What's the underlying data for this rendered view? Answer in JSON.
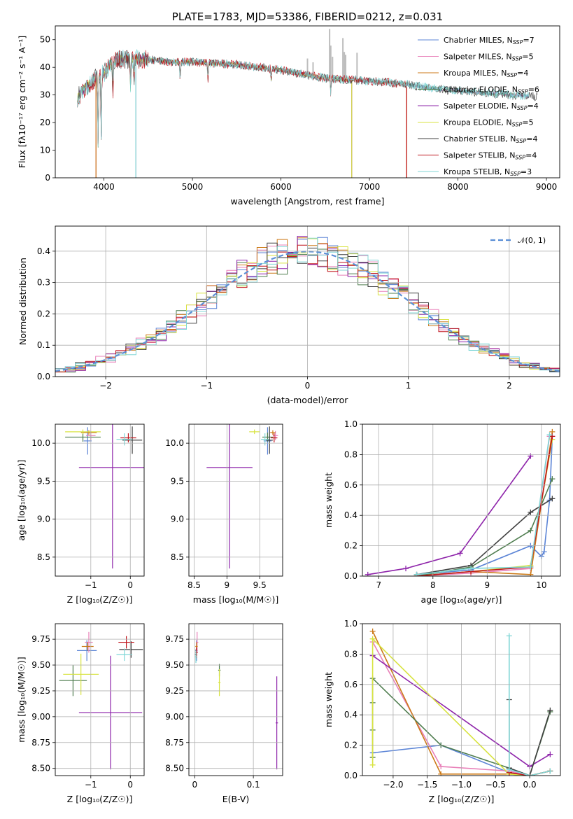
{
  "colors": {
    "Chabrier MILES": "#5b84d6",
    "Salpeter MILES": "#e87fb8",
    "Kroupa MILES": "#cc7a18",
    "Chabrier ELODIE": "#4f7d4f",
    "Salpeter ELODIE": "#8e24aa",
    "Kroupa ELODIE": "#d8e340",
    "Chabrier STELIB": "#404040",
    "Salpeter STELIB": "#c0141c",
    "Kroupa STELIB": "#7fd6d6",
    "gauss": "#5b8fd6",
    "sky": "#bdbdbd"
  },
  "chart_data": [
    {
      "id": "spectrum",
      "type": "line",
      "title": "PLATE=1783, MJD=53386, FIBERID=0212, z=0.031",
      "xlabel": "wavelength [Angstrom, rest frame]",
      "ylabel": "Flux [fλ10⁻¹⁷ erg cm⁻² s⁻¹ A⁻¹]",
      "xlim": [
        3450,
        9150
      ],
      "ylim": [
        0,
        55
      ],
      "xticks": [
        4000,
        5000,
        6000,
        7000,
        8000,
        9000
      ],
      "yticks": [
        0,
        10,
        20,
        30,
        40,
        50
      ],
      "legend": "top-right",
      "series": [
        {
          "name": "Chabrier MILES, N",
          "sub": "SSP",
          "eq": "=7"
        },
        {
          "name": "Salpeter MILES, N",
          "sub": "SSP",
          "eq": "=5"
        },
        {
          "name": "Kroupa MILES, N",
          "sub": "SSP",
          "eq": "=4"
        },
        {
          "name": "Chabrier ELODIE, N",
          "sub": "SSP",
          "eq": "=6"
        },
        {
          "name": "Salpeter ELODIE, N",
          "sub": "SSP",
          "eq": "=4"
        },
        {
          "name": "Kroupa ELODIE, N",
          "sub": "SSP",
          "eq": "=5"
        },
        {
          "name": "Chabrier STELIB, N",
          "sub": "SSP",
          "eq": "=4"
        },
        {
          "name": "Salpeter STELIB, N",
          "sub": "SSP",
          "eq": "=4"
        },
        {
          "name": "Kroupa STELIB, N",
          "sub": "SSP",
          "eq": "=3"
        }
      ],
      "continuum": [
        [
          3700,
          29
        ],
        [
          3800,
          33
        ],
        [
          3900,
          36
        ],
        [
          4000,
          38
        ],
        [
          4100,
          42
        ],
        [
          4200,
          43
        ],
        [
          4400,
          43
        ],
        [
          4600,
          42.5
        ],
        [
          4800,
          42
        ],
        [
          5000,
          42
        ],
        [
          5200,
          41.5
        ],
        [
          5500,
          41
        ],
        [
          6000,
          39
        ],
        [
          6500,
          36
        ],
        [
          7000,
          35
        ],
        [
          7400,
          34
        ],
        [
          7800,
          32
        ],
        [
          8200,
          31
        ],
        [
          8600,
          30
        ],
        [
          8800,
          29.5
        ]
      ],
      "absorption": [
        [
          3934,
          24
        ],
        [
          3969,
          22
        ],
        [
          4101,
          10
        ],
        [
          4300,
          10
        ],
        [
          4340,
          8
        ],
        [
          4861,
          6
        ],
        [
          5175,
          6
        ],
        [
          5890,
          4
        ],
        [
          6563,
          5
        ]
      ],
      "sky_lines": [
        [
          6300,
          6
        ],
        [
          6363,
          5
        ],
        [
          6550,
          18
        ],
        [
          6563,
          12
        ],
        [
          6583,
          8
        ],
        [
          6700,
          15
        ],
        [
          6716,
          10
        ],
        [
          6731,
          9
        ],
        [
          6860,
          10
        ]
      ],
      "dropouts": [
        {
          "series": "Salpeter MILES",
          "x": 3910
        },
        {
          "series": "Kroupa MILES",
          "x": 3910
        },
        {
          "series": "Kroupa STELIB",
          "x": 4360
        },
        {
          "series": "Salpeter MILES",
          "x": 4360
        },
        {
          "series": "Kroupa ELODIE",
          "x": 6800
        },
        {
          "series": "Salpeter ELODIE",
          "x": 6800
        },
        {
          "series": "Kroupa MILES",
          "x": 7420
        },
        {
          "series": "Salpeter STELIB",
          "x": 7420
        }
      ],
      "series_end": [
        8800,
        8800,
        7420,
        8650,
        6800,
        6800,
        8900,
        7420,
        8800
      ]
    },
    {
      "id": "residuals",
      "type": "bar",
      "xlabel": "(data-model)/error",
      "ylabel": "Normed distribution",
      "xlim": [
        -2.5,
        2.5
      ],
      "ylim": [
        0,
        0.48
      ],
      "xticks": [
        -2,
        -1,
        0,
        1,
        2
      ],
      "yticks": [
        0.0,
        0.1,
        0.2,
        0.3,
        0.4
      ],
      "grid": true,
      "legend_label": "𝒩(0, 1)",
      "bin_width": 0.1
    },
    {
      "id": "age_vs_Z",
      "type": "scatter",
      "xlabel": "Z [log₁₀(Z/Z☉)]",
      "ylabel": "age  [log₁₀(age/yr)]",
      "xlim": [
        -1.9,
        0.35
      ],
      "ylim": [
        8.25,
        10.25
      ],
      "xticks": [
        -1,
        0
      ],
      "yticks": [
        8.5,
        9.0,
        9.5,
        10.0
      ],
      "points": [
        {
          "s": "Chabrier MILES",
          "x": -1.08,
          "y": 10.03,
          "xe": 0.1,
          "ye": 0.18
        },
        {
          "s": "Salpeter MILES",
          "x": -1.0,
          "y": 10.1,
          "xe": 0.12,
          "ye": 0.06
        },
        {
          "s": "Kroupa MILES",
          "x": -1.05,
          "y": 10.14,
          "xe": 0.2,
          "ye": 0.03
        },
        {
          "s": "Chabrier ELODIE",
          "x": -1.2,
          "y": 10.08,
          "xe": 0.45,
          "ye": 0.06
        },
        {
          "s": "Salpeter ELODIE",
          "x": -0.45,
          "y": 9.68,
          "xe": 0.85,
          "ye": 1.33
        },
        {
          "s": "Kroupa ELODIE",
          "x": -1.2,
          "y": 10.15,
          "xe": 0.45,
          "ye": 0.03
        },
        {
          "s": "Chabrier STELIB",
          "x": 0.05,
          "y": 10.04,
          "xe": 0.25,
          "ye": 0.18
        },
        {
          "s": "Salpeter STELIB",
          "x": -0.05,
          "y": 10.07,
          "xe": 0.2,
          "ye": 0.06
        },
        {
          "s": "Kroupa STELIB",
          "x": -0.15,
          "y": 10.05,
          "xe": 0.2,
          "ye": 0.08
        }
      ]
    },
    {
      "id": "age_vs_mass",
      "type": "scatter",
      "xlabel": "mass [log₁₀(M/M☉)]",
      "ylabel": "",
      "xlim": [
        8.42,
        9.85
      ],
      "ylim": [
        8.25,
        10.25
      ],
      "xticks": [
        8.5,
        9.0,
        9.5
      ],
      "yticks": [
        8.5,
        9.0,
        9.5,
        10.0
      ],
      "points": [
        {
          "s": "Chabrier MILES",
          "x": 9.62,
          "y": 10.03,
          "xe": 0.06,
          "ye": 0.18
        },
        {
          "s": "Salpeter MILES",
          "x": 9.74,
          "y": 10.1,
          "xe": 0.04,
          "ye": 0.06
        },
        {
          "s": "Kroupa MILES",
          "x": 9.7,
          "y": 10.14,
          "xe": 0.04,
          "ye": 0.03
        },
        {
          "s": "Chabrier ELODIE",
          "x": 9.62,
          "y": 10.08,
          "xe": 0.08,
          "ye": 0.06
        },
        {
          "s": "Salpeter ELODIE",
          "x": 9.04,
          "y": 9.68,
          "xe": 0.35,
          "ye": 1.33
        },
        {
          "s": "Kroupa ELODIE",
          "x": 9.42,
          "y": 10.15,
          "xe": 0.08,
          "ye": 0.03
        },
        {
          "s": "Chabrier STELIB",
          "x": 9.65,
          "y": 10.04,
          "xe": 0.05,
          "ye": 0.18
        },
        {
          "s": "Salpeter STELIB",
          "x": 9.72,
          "y": 10.07,
          "xe": 0.05,
          "ye": 0.06
        },
        {
          "s": "Kroupa STELIB",
          "x": 9.58,
          "y": 10.05,
          "xe": 0.06,
          "ye": 0.08
        }
      ]
    },
    {
      "id": "weight_vs_age",
      "type": "line",
      "xlabel": "age  [log₁₀(age/yr)]",
      "ylabel": "mass weight",
      "xlim": [
        6.7,
        10.35
      ],
      "ylim": [
        0,
        1
      ],
      "xticks": [
        7,
        8,
        9,
        10
      ],
      "yticks": [
        0.0,
        0.2,
        0.4,
        0.6,
        0.8,
        1.0
      ],
      "grid": true,
      "series": [
        {
          "s": "Chabrier MILES",
          "x": [
            7.7,
            8.7,
            9.8,
            10.0,
            10.05,
            10.15,
            10.2
          ],
          "y": [
            0.01,
            0.04,
            0.2,
            0.13,
            0.16,
            0.5,
            0.92
          ]
        },
        {
          "s": "Salpeter MILES",
          "x": [
            7.7,
            8.7,
            9.8,
            10.15
          ],
          "y": [
            0.0,
            0.02,
            0.05,
            0.92
          ]
        },
        {
          "s": "Kroupa MILES",
          "x": [
            7.7,
            8.7,
            9.8,
            10.2
          ],
          "y": [
            0.0,
            0.03,
            0.01,
            0.95
          ]
        },
        {
          "s": "Chabrier ELODIE",
          "x": [
            7.7,
            8.7,
            9.8,
            10.2
          ],
          "y": [
            0.0,
            0.06,
            0.3,
            0.64
          ]
        },
        {
          "s": "Salpeter ELODIE",
          "x": [
            6.8,
            7.5,
            8.5,
            9.8
          ],
          "y": [
            0.01,
            0.05,
            0.15,
            0.79
          ]
        },
        {
          "s": "Kroupa ELODIE",
          "x": [
            7.7,
            8.7,
            9.8,
            10.2
          ],
          "y": [
            0.0,
            0.03,
            0.07,
            0.9
          ]
        },
        {
          "s": "Chabrier STELIB",
          "x": [
            7.7,
            8.7,
            9.8,
            10.2
          ],
          "y": [
            0.01,
            0.07,
            0.42,
            0.51
          ]
        },
        {
          "s": "Salpeter STELIB",
          "x": [
            7.7,
            8.7,
            9.8,
            10.2
          ],
          "y": [
            0.0,
            0.03,
            0.06,
            0.92
          ]
        },
        {
          "s": "Kroupa STELIB",
          "x": [
            7.7,
            8.7,
            9.8,
            10.15
          ],
          "y": [
            0.01,
            0.05,
            0.06,
            0.93
          ]
        }
      ]
    },
    {
      "id": "mass_vs_Z",
      "type": "scatter",
      "xlabel": "Z [log₁₀(Z/Z☉)]",
      "ylabel": "mass [log₁₀(M/M☉)]",
      "xlim": [
        -1.9,
        0.35
      ],
      "ylim": [
        8.43,
        9.9
      ],
      "xticks": [
        -1,
        0
      ],
      "yticks": [
        8.5,
        8.75,
        9.0,
        9.25,
        9.5,
        9.75
      ],
      "points": [
        {
          "s": "Chabrier MILES",
          "x": -1.1,
          "y": 9.64,
          "xe": 0.25,
          "ye": 0.1
        },
        {
          "s": "Salpeter MILES",
          "x": -1.05,
          "y": 9.72,
          "xe": 0.1,
          "ye": 0.1
        },
        {
          "s": "Kroupa MILES",
          "x": -1.08,
          "y": 9.68,
          "xe": 0.15,
          "ye": 0.04
        },
        {
          "s": "Chabrier ELODIE",
          "x": -1.45,
          "y": 9.35,
          "xe": 0.35,
          "ye": 0.15
        },
        {
          "s": "Salpeter ELODIE",
          "x": -0.5,
          "y": 9.04,
          "xe": 0.8,
          "ye": 0.55
        },
        {
          "s": "Kroupa ELODIE",
          "x": -1.25,
          "y": 9.41,
          "xe": 0.45,
          "ye": 0.2
        },
        {
          "s": "Chabrier STELIB",
          "x": 0.02,
          "y": 9.65,
          "xe": 0.3,
          "ye": 0.08
        },
        {
          "s": "Salpeter STELIB",
          "x": -0.1,
          "y": 9.72,
          "xe": 0.2,
          "ye": 0.06
        },
        {
          "s": "Kroupa STELIB",
          "x": -0.15,
          "y": 9.6,
          "xe": 0.2,
          "ye": 0.06
        }
      ]
    },
    {
      "id": "mass_vs_ebv",
      "type": "scatter",
      "xlabel": "E(B-V)",
      "ylabel": "",
      "xlim": [
        -0.01,
        0.15
      ],
      "ylim": [
        8.43,
        9.9
      ],
      "xticks": [
        0.0,
        0.1
      ],
      "yticks": [
        8.5,
        8.75,
        9.0,
        9.25,
        9.5,
        9.75
      ],
      "points": [
        {
          "s": "Chabrier MILES",
          "x": 0.003,
          "y": 9.64,
          "xe": 0.002,
          "ye": 0.1
        },
        {
          "s": "Salpeter MILES",
          "x": 0.004,
          "y": 9.72,
          "xe": 0.002,
          "ye": 0.1
        },
        {
          "s": "Kroupa MILES",
          "x": 0.003,
          "y": 9.68,
          "xe": 0.002,
          "ye": 0.04
        },
        {
          "s": "Chabrier ELODIE",
          "x": 0.042,
          "y": 9.45,
          "xe": 0.002,
          "ye": 0.06
        },
        {
          "s": "Salpeter ELODIE",
          "x": 0.14,
          "y": 8.94,
          "xe": 0.002,
          "ye": 0.45
        },
        {
          "s": "Kroupa ELODIE",
          "x": 0.042,
          "y": 9.33,
          "xe": 0.002,
          "ye": 0.13
        },
        {
          "s": "Chabrier STELIB",
          "x": 0.002,
          "y": 9.6,
          "xe": 0.002,
          "ye": 0.05
        },
        {
          "s": "Salpeter STELIB",
          "x": 0.003,
          "y": 9.62,
          "xe": 0.002,
          "ye": 0.05
        },
        {
          "s": "Kroupa STELIB",
          "x": 0.002,
          "y": 9.58,
          "xe": 0.002,
          "ye": 0.06
        }
      ]
    },
    {
      "id": "weight_vs_Z",
      "type": "line",
      "xlabel": "Z [log₁₀(Z/Z☉)]",
      "ylabel": "mass weight",
      "xlim": [
        -2.45,
        0.45
      ],
      "ylim": [
        0,
        1
      ],
      "xticks": [
        -2.0,
        -1.5,
        -1.0,
        -0.5,
        0.0
      ],
      "yticks": [
        0.0,
        0.2,
        0.4,
        0.6,
        0.8,
        1.0
      ],
      "grid": true,
      "series": [
        {
          "s": "Chabrier MILES",
          "x": [
            -2.3,
            -1.3,
            -0.3,
            0.0,
            0.3
          ],
          "y": [
            0.15,
            0.2,
            0.02,
            0.0,
            0.03
          ]
        },
        {
          "s": "Salpeter MILES",
          "x": [
            -2.3,
            -1.3,
            -0.3,
            0.0,
            0.3
          ],
          "y": [
            0.88,
            0.06,
            0.03,
            0.0,
            0.03
          ]
        },
        {
          "s": "Kroupa MILES",
          "x": [
            -2.3,
            -1.3,
            -0.3,
            0.0,
            0.3
          ],
          "y": [
            0.95,
            0.01,
            0.01,
            0.0,
            0.03
          ]
        },
        {
          "s": "Chabrier ELODIE",
          "x": [
            -2.3,
            -2.3,
            -2.3,
            -2.3,
            -1.3,
            -0.3,
            0.0,
            0.3
          ],
          "y": [
            0.12,
            0.3,
            0.48,
            0.64,
            0.2,
            0.05,
            0.0,
            0.42
          ]
        },
        {
          "s": "Salpeter ELODIE",
          "x": [
            -2.3,
            0.0,
            0.3
          ],
          "y": [
            0.79,
            0.06,
            0.14
          ]
        },
        {
          "s": "Kroupa ELODIE",
          "x": [
            -2.3,
            -2.3,
            -0.3,
            0.0,
            0.3
          ],
          "y": [
            0.07,
            0.9,
            0.01,
            0.0,
            0.03
          ]
        },
        {
          "s": "Chabrier STELIB",
          "x": [
            -0.3,
            -0.3,
            0.0,
            0.3
          ],
          "y": [
            0.5,
            0.05,
            0.0,
            0.43
          ]
        },
        {
          "s": "Salpeter STELIB",
          "x": [
            -0.3,
            0.0,
            0.3
          ],
          "y": [
            0.02,
            0.0,
            0.03
          ]
        },
        {
          "s": "Kroupa STELIB",
          "x": [
            -0.3,
            -0.3,
            0.0,
            0.3
          ],
          "y": [
            0.92,
            0.04,
            0.0,
            0.03
          ]
        }
      ]
    }
  ]
}
